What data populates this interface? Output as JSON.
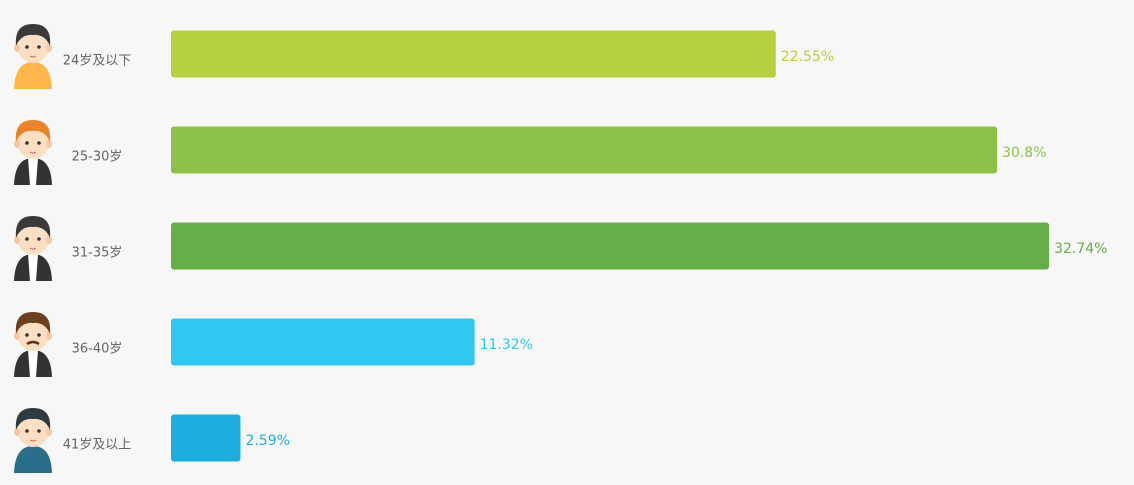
{
  "chart_data": {
    "type": "bar",
    "orientation": "horizontal",
    "categories": [
      "24岁及以下",
      "25-30岁",
      "31-35岁",
      "36-40岁",
      "41岁及以上"
    ],
    "values": [
      22.55,
      30.8,
      32.74,
      11.32,
      2.59
    ],
    "value_labels": [
      "22.55%",
      "30.8%",
      "32.74%",
      "11.32%",
      "2.59%"
    ],
    "colors": [
      "#b5d13f",
      "#8dc24a",
      "#66ae48",
      "#30c8f0",
      "#1eaedd"
    ]
  }
}
